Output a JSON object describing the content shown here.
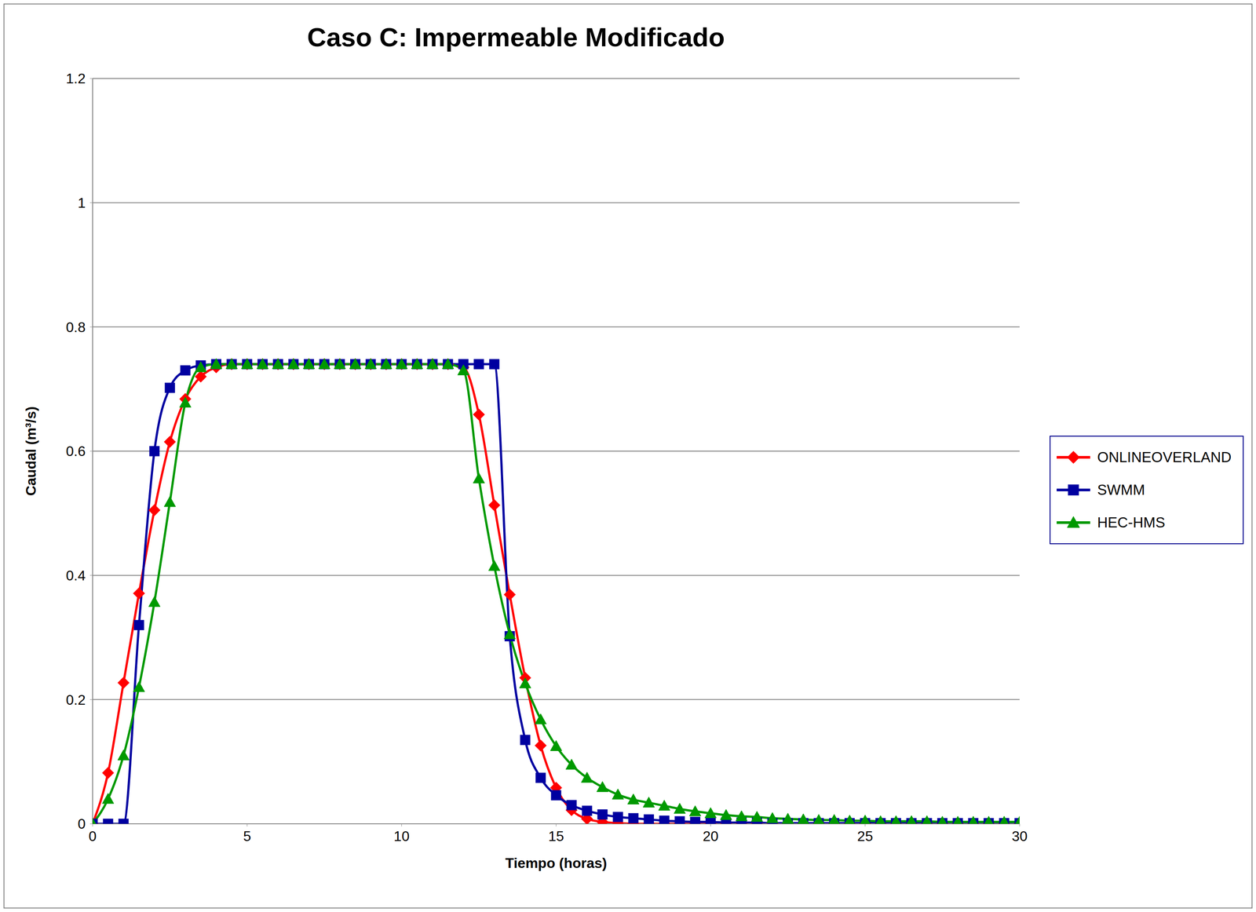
{
  "chart_data": {
    "type": "line",
    "title": "Caso C:  Impermeable Modificado",
    "x_label": "Tiempo (horas)",
    "y_label": "Caudal (m³/s)",
    "xlim": [
      0,
      30
    ],
    "xticks": [
      0,
      5,
      10,
      15,
      20,
      25,
      30
    ],
    "ylim": [
      0,
      1.2
    ],
    "yticks": [
      0,
      0.2,
      0.4,
      0.6,
      0.8,
      1,
      1.2
    ],
    "grid": true,
    "legend": "right",
    "x": [
      0,
      0.5,
      1,
      1.5,
      2,
      2.5,
      3,
      3.5,
      4,
      4.5,
      5,
      5.5,
      6,
      6.5,
      7,
      7.5,
      8,
      8.5,
      9,
      9.5,
      10,
      10.5,
      11,
      11.5,
      12,
      12.5,
      13,
      13.5,
      14,
      14.5,
      15,
      15.5,
      16,
      16.5,
      17,
      17.5,
      18,
      18.5,
      19,
      19.5,
      20,
      20.5,
      21,
      21.5,
      22,
      22.5,
      23,
      23.5,
      24,
      24.5,
      25,
      25.5,
      26,
      26.5,
      27,
      27.5,
      28,
      28.5,
      29,
      29.5,
      30
    ],
    "series": [
      {
        "name": "ONLINEOVERLAND",
        "color": "#ff0000",
        "marker": "diamond",
        "values": [
          0,
          0.082,
          0.227,
          0.371,
          0.505,
          0.615,
          0.684,
          0.72,
          0.735,
          0.74,
          0.74,
          0.74,
          0.74,
          0.74,
          0.74,
          0.74,
          0.74,
          0.74,
          0.74,
          0.74,
          0.74,
          0.74,
          0.74,
          0.74,
          0.735,
          0.659,
          0.513,
          0.369,
          0.235,
          0.126,
          0.058,
          0.022,
          0.008,
          0.003,
          0.001,
          0,
          0,
          0,
          0,
          0,
          0,
          0,
          0,
          0,
          0,
          0,
          0,
          0,
          0,
          0,
          0,
          0,
          0,
          0,
          0,
          0,
          0,
          0,
          0,
          0,
          0
        ]
      },
      {
        "name": "SWMM",
        "color": "#0000a0",
        "marker": "square",
        "values": [
          0,
          0,
          0,
          0.32,
          0.6,
          0.702,
          0.73,
          0.738,
          0.74,
          0.74,
          0.74,
          0.74,
          0.74,
          0.74,
          0.74,
          0.74,
          0.74,
          0.74,
          0.74,
          0.74,
          0.74,
          0.74,
          0.74,
          0.74,
          0.74,
          0.74,
          0.74,
          0.302,
          0.135,
          0.074,
          0.046,
          0.03,
          0.021,
          0.015,
          0.011,
          0.009,
          0.007,
          0.005,
          0.004,
          0.003,
          0.003,
          0.002,
          0.002,
          0.002,
          0.001,
          0.001,
          0.001,
          0.001,
          0.001,
          0.001,
          0.001,
          0.001,
          0.001,
          0.001,
          0.001,
          0.001,
          0.001,
          0.001,
          0.001,
          0.001,
          0.001
        ]
      },
      {
        "name": "HEC-HMS",
        "color": "#009900",
        "marker": "triangle",
        "values": [
          0,
          0.04,
          0.11,
          0.22,
          0.357,
          0.518,
          0.678,
          0.735,
          0.74,
          0.74,
          0.74,
          0.74,
          0.74,
          0.74,
          0.74,
          0.74,
          0.74,
          0.74,
          0.74,
          0.74,
          0.74,
          0.74,
          0.74,
          0.74,
          0.73,
          0.556,
          0.415,
          0.305,
          0.226,
          0.168,
          0.125,
          0.095,
          0.074,
          0.059,
          0.047,
          0.039,
          0.034,
          0.029,
          0.024,
          0.02,
          0.017,
          0.014,
          0.012,
          0.011,
          0.009,
          0.008,
          0.007,
          0.006,
          0.006,
          0.005,
          0.005,
          0.004,
          0.004,
          0.004,
          0.004,
          0.003,
          0.003,
          0.003,
          0.003,
          0.003,
          0.003
        ]
      }
    ]
  }
}
